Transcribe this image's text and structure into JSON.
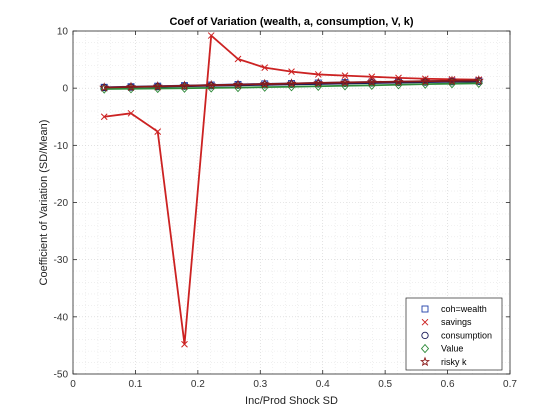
{
  "chart_data": {
    "type": "line",
    "title": "Coef of Variation (wealth, a, consumption, V, k)",
    "xlabel": "Inc/Prod Shock SD",
    "ylabel": "Coefficient of Variation (SD/Mean)",
    "xlim": [
      0,
      0.7
    ],
    "ylim": [
      -50,
      10
    ],
    "xticks": [
      0,
      0.1,
      0.2,
      0.3,
      0.4,
      0.5,
      0.6,
      0.7
    ],
    "xtick_labels": [
      "0",
      "0.1",
      "0.2",
      "0.3",
      "0.4",
      "0.5",
      "0.6",
      "0.7"
    ],
    "yticks": [
      -50,
      -40,
      -30,
      -20,
      -10,
      0,
      10
    ],
    "ytick_labels": [
      "-50",
      "-40",
      "-30",
      "-20",
      "-10",
      "0",
      "10"
    ],
    "grid": "major and minor, dotted",
    "legend_position": "bottom-right",
    "x": [
      0.05,
      0.0929,
      0.1357,
      0.1786,
      0.2214,
      0.2643,
      0.3071,
      0.35,
      0.3929,
      0.4357,
      0.4786,
      0.5214,
      0.5643,
      0.6071,
      0.65
    ],
    "series": [
      {
        "name": "coh=wealth",
        "marker": "square",
        "color": "#1f3fa8",
        "values": [
          0.15,
          0.25,
          0.35,
          0.45,
          0.55,
          0.65,
          0.75,
          0.82,
          0.9,
          0.98,
          1.05,
          1.12,
          1.2,
          1.25,
          1.3
        ]
      },
      {
        "name": "savings",
        "marker": "x",
        "color": "#cc2222",
        "values": [
          -5.0,
          -4.4,
          -7.6,
          -44.8,
          9.2,
          5.1,
          3.6,
          2.9,
          2.4,
          2.2,
          2.0,
          1.8,
          1.65,
          1.55,
          1.5
        ]
      },
      {
        "name": "consumption",
        "marker": "circle",
        "color": "#1a1a5a",
        "values": [
          0.1,
          0.18,
          0.26,
          0.34,
          0.42,
          0.5,
          0.58,
          0.66,
          0.74,
          0.82,
          0.9,
          0.98,
          1.06,
          1.12,
          1.18
        ]
      },
      {
        "name": "Value",
        "marker": "diamond",
        "color": "#2e8b3a",
        "values": [
          -0.15,
          -0.1,
          -0.05,
          0.0,
          0.05,
          0.1,
          0.18,
          0.25,
          0.33,
          0.42,
          0.5,
          0.6,
          0.7,
          0.78,
          0.85
        ]
      },
      {
        "name": "risky k",
        "marker": "star",
        "color": "#8b1a1a",
        "values": [
          0.12,
          0.22,
          0.32,
          0.42,
          0.52,
          0.62,
          0.72,
          0.82,
          0.92,
          1.0,
          1.08,
          1.15,
          1.22,
          1.3,
          1.35
        ]
      }
    ]
  }
}
